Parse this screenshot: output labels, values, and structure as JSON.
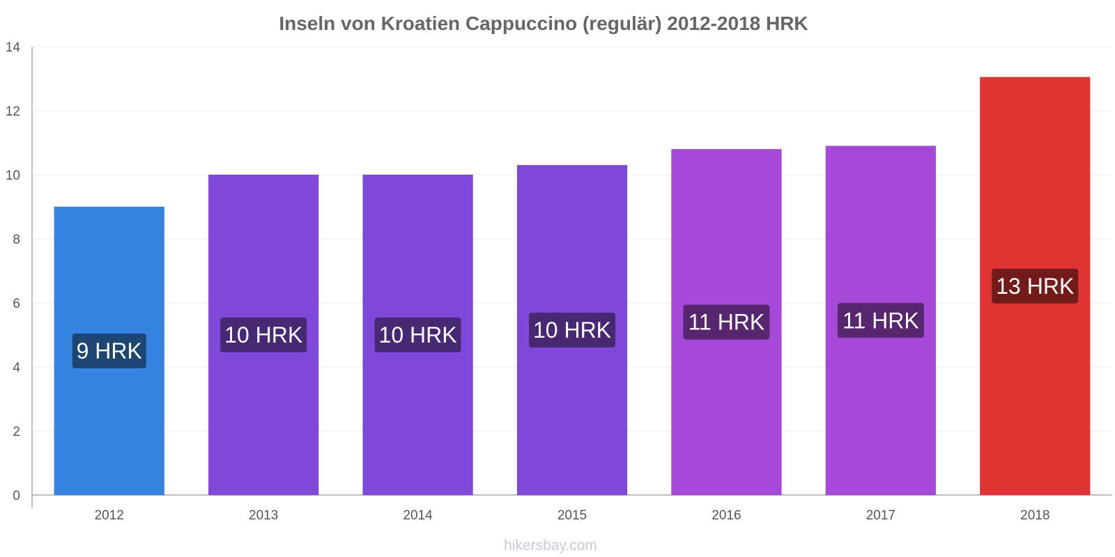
{
  "chart_data": {
    "type": "bar",
    "title": "Inseln von Kroatien Cappuccino (regulär) 2012-2018 HRK",
    "xlabel": "",
    "ylabel": "",
    "categories": [
      "2012",
      "2013",
      "2014",
      "2015",
      "2016",
      "2017",
      "2018"
    ],
    "values": [
      9.0,
      10.0,
      10.0,
      10.3,
      10.8,
      10.9,
      13.05
    ],
    "data_labels": [
      "9 HRK",
      "10 HRK",
      "10 HRK",
      "10 HRK",
      "11 HRK",
      "11 HRK",
      "13 HRK"
    ],
    "ylim": [
      0,
      14
    ],
    "yticks": [
      0,
      2,
      4,
      6,
      8,
      10,
      12,
      14
    ],
    "grid": true,
    "legend": "none",
    "bar_colors": [
      "#3584e0",
      "#8049d9",
      "#8049d9",
      "#8049d9",
      "#a649d9",
      "#a649d9",
      "#e03535"
    ],
    "label_bg_colors": [
      "#1d4673",
      "#472873",
      "#472873",
      "#472873",
      "#57266f",
      "#57266f",
      "#721b1b"
    ]
  },
  "footer": "hikersbay.com"
}
